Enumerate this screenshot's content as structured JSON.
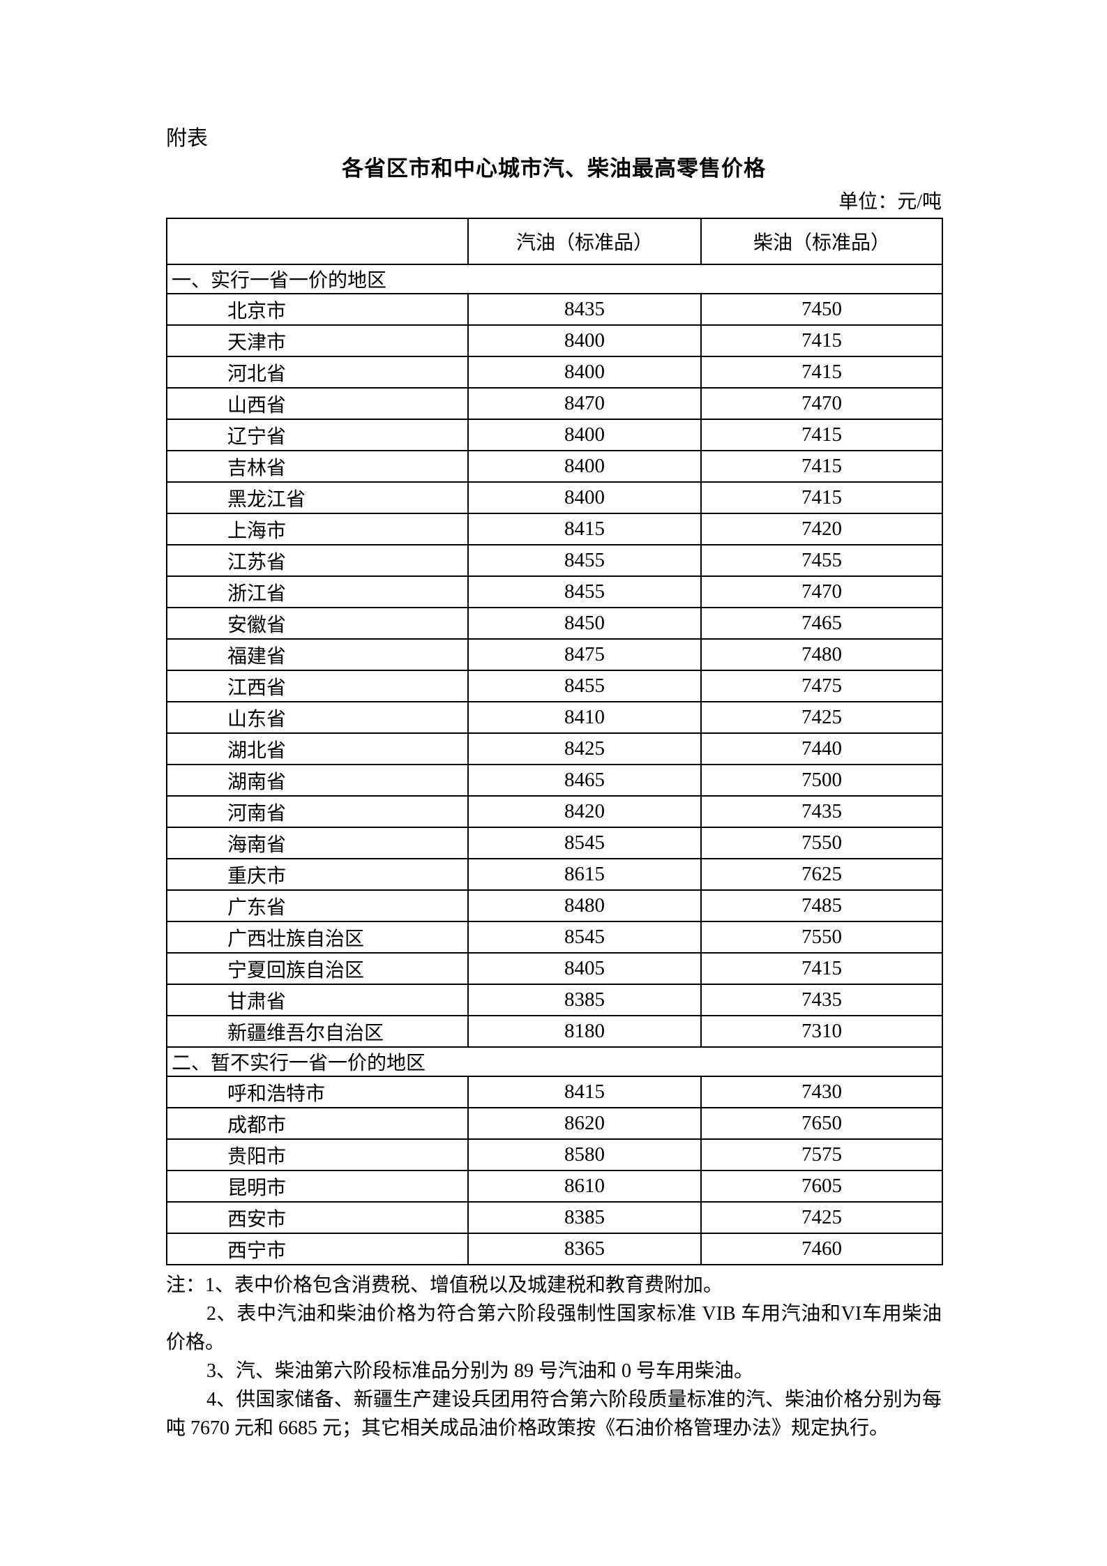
{
  "page": {
    "appendix_label": "附表",
    "title": "各省区市和中心城市汽、柴油最高零售价格",
    "unit_label": "单位：元/吨"
  },
  "table": {
    "columns": [
      "",
      "汽油（标准品）",
      "柴油（标准品）"
    ],
    "sections": [
      {
        "header": "一、实行一省一价的地区",
        "rows": [
          {
            "region": "北京市",
            "gasoline": "8435",
            "diesel": "7450"
          },
          {
            "region": "天津市",
            "gasoline": "8400",
            "diesel": "7415"
          },
          {
            "region": "河北省",
            "gasoline": "8400",
            "diesel": "7415"
          },
          {
            "region": "山西省",
            "gasoline": "8470",
            "diesel": "7470"
          },
          {
            "region": "辽宁省",
            "gasoline": "8400",
            "diesel": "7415"
          },
          {
            "region": "吉林省",
            "gasoline": "8400",
            "diesel": "7415"
          },
          {
            "region": "黑龙江省",
            "gasoline": "8400",
            "diesel": "7415"
          },
          {
            "region": "上海市",
            "gasoline": "8415",
            "diesel": "7420"
          },
          {
            "region": "江苏省",
            "gasoline": "8455",
            "diesel": "7455"
          },
          {
            "region": "浙江省",
            "gasoline": "8455",
            "diesel": "7470"
          },
          {
            "region": "安徽省",
            "gasoline": "8450",
            "diesel": "7465"
          },
          {
            "region": "福建省",
            "gasoline": "8475",
            "diesel": "7480"
          },
          {
            "region": "江西省",
            "gasoline": "8455",
            "diesel": "7475"
          },
          {
            "region": "山东省",
            "gasoline": "8410",
            "diesel": "7425"
          },
          {
            "region": "湖北省",
            "gasoline": "8425",
            "diesel": "7440"
          },
          {
            "region": "湖南省",
            "gasoline": "8465",
            "diesel": "7500"
          },
          {
            "region": "河南省",
            "gasoline": "8420",
            "diesel": "7435"
          },
          {
            "region": "海南省",
            "gasoline": "8545",
            "diesel": "7550"
          },
          {
            "region": "重庆市",
            "gasoline": "8615",
            "diesel": "7625"
          },
          {
            "region": "广东省",
            "gasoline": "8480",
            "diesel": "7485"
          },
          {
            "region": "广西壮族自治区",
            "gasoline": "8545",
            "diesel": "7550"
          },
          {
            "region": "宁夏回族自治区",
            "gasoline": "8405",
            "diesel": "7415"
          },
          {
            "region": "甘肃省",
            "gasoline": "8385",
            "diesel": "7435"
          },
          {
            "region": "新疆维吾尔自治区",
            "gasoline": "8180",
            "diesel": "7310"
          }
        ]
      },
      {
        "header": "二、暂不实行一省一价的地区",
        "rows": [
          {
            "region": "呼和浩特市",
            "gasoline": "8415",
            "diesel": "7430"
          },
          {
            "region": "成都市",
            "gasoline": "8620",
            "diesel": "7650"
          },
          {
            "region": "贵阳市",
            "gasoline": "8580",
            "diesel": "7575"
          },
          {
            "region": "昆明市",
            "gasoline": "8610",
            "diesel": "7605"
          },
          {
            "region": "西安市",
            "gasoline": "8385",
            "diesel": "7425"
          },
          {
            "region": "西宁市",
            "gasoline": "8365",
            "diesel": "7460"
          }
        ]
      }
    ]
  },
  "notes": [
    "注：1、表中价格包含消费税、增值税以及城建税和教育费附加。",
    "2、表中汽油和柴油价格为符合第六阶段强制性国家标准 VIB 车用汽油和VI车用柴油价格。",
    "3、汽、柴油第六阶段标准品分别为 89 号汽油和 0 号车用柴油。",
    "4、供国家储备、新疆生产建设兵团用符合第六阶段质量标准的汽、柴油价格分别为每吨 7670 元和 6685 元；其它相关成品油价格政策按《石油价格管理办法》规定执行。"
  ]
}
